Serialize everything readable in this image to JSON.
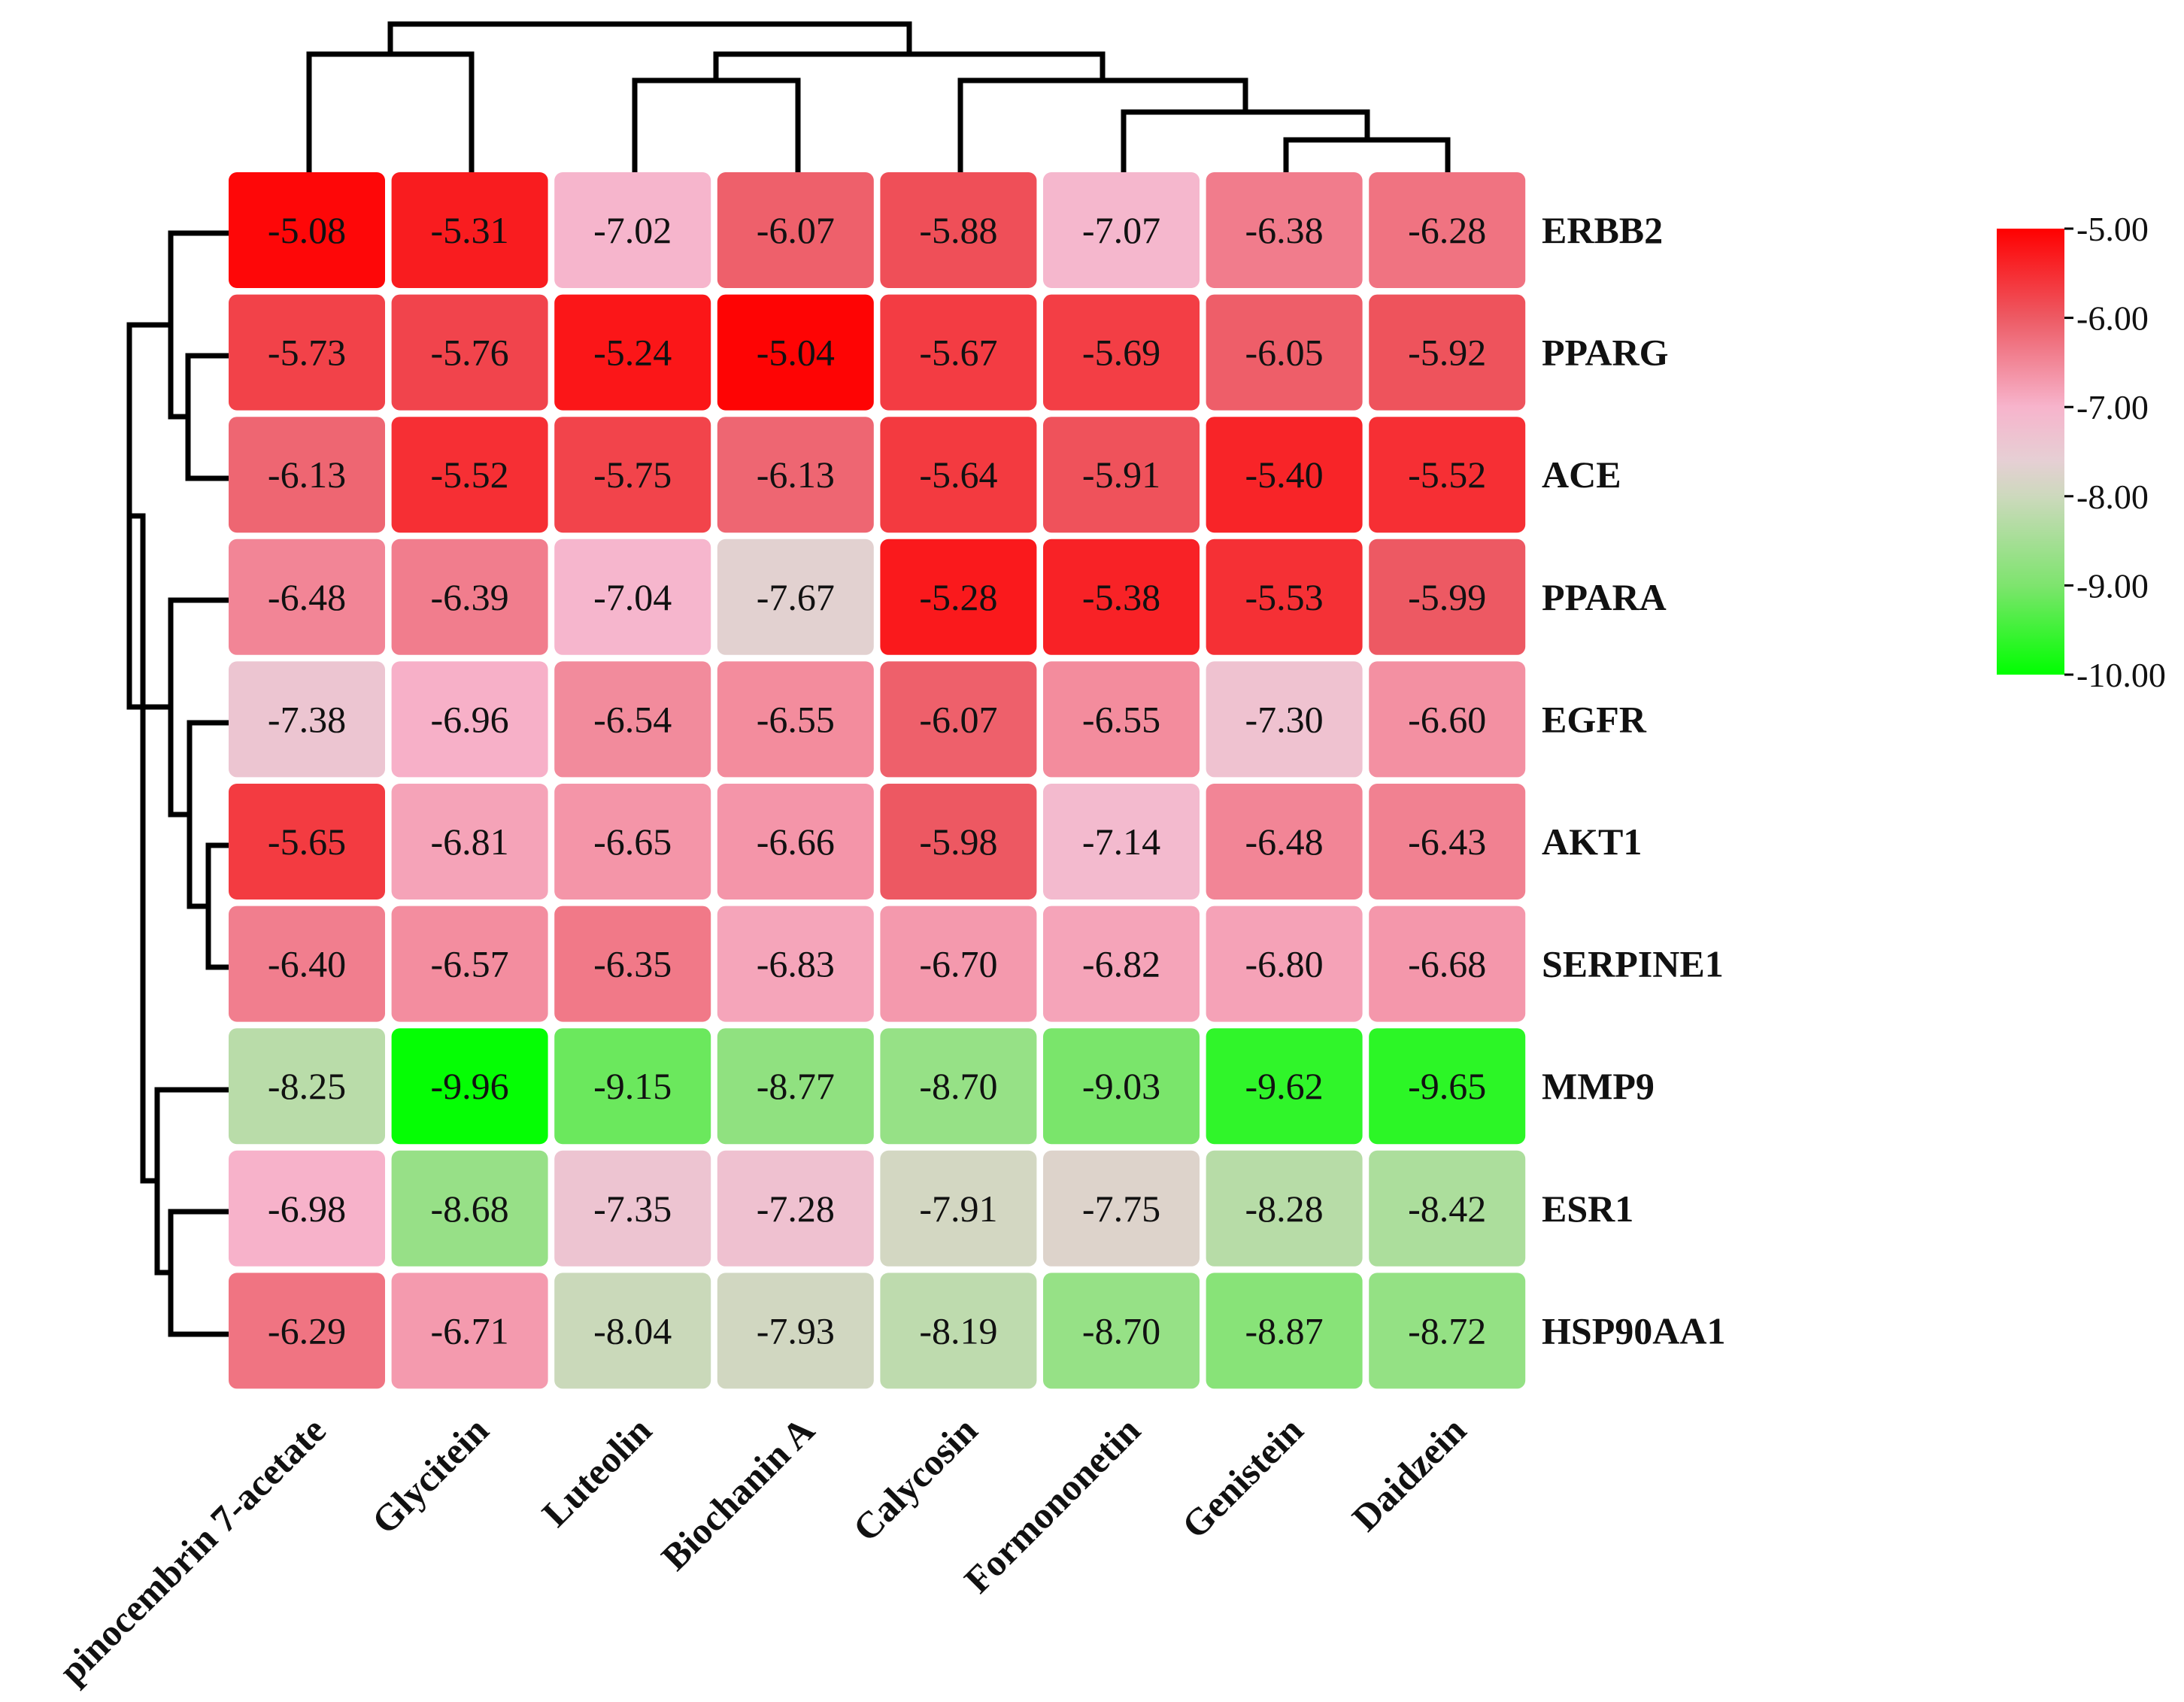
{
  "chart_data": {
    "type": "heatmap",
    "title": "",
    "rows": [
      "ERBB2",
      "PPARG",
      "ACE",
      "PPARA",
      "EGFR",
      "AKT1",
      "SERPINE1",
      "MMP9",
      "ESR1",
      "HSP90AA1"
    ],
    "columns": [
      "pinocembrin 7-acetate",
      "Glycitein",
      "Luteolin",
      "Biochanin A",
      "Calycosin",
      "Formononetin",
      "Genistein",
      "Daidzein"
    ],
    "values": [
      [
        -5.08,
        -5.31,
        -7.02,
        -6.07,
        -5.88,
        -7.07,
        -6.38,
        -6.28
      ],
      [
        -5.73,
        -5.76,
        -5.24,
        -5.04,
        -5.67,
        -5.69,
        -6.05,
        -5.92
      ],
      [
        -6.13,
        -5.52,
        -5.75,
        -6.13,
        -5.64,
        -5.91,
        -5.4,
        -5.52
      ],
      [
        -6.48,
        -6.39,
        -7.04,
        -7.67,
        -5.28,
        -5.38,
        -5.53,
        -5.99
      ],
      [
        -7.38,
        -6.96,
        -6.54,
        -6.55,
        -6.07,
        -6.55,
        -7.3,
        -6.6
      ],
      [
        -5.65,
        -6.81,
        -6.65,
        -6.66,
        -5.98,
        -7.14,
        -6.48,
        -6.43
      ],
      [
        -6.4,
        -6.57,
        -6.35,
        -6.83,
        -6.7,
        -6.82,
        -6.8,
        -6.68
      ],
      [
        -8.25,
        -9.96,
        -9.15,
        -8.77,
        -8.7,
        -9.03,
        -9.62,
        -9.65
      ],
      [
        -6.98,
        -8.68,
        -7.35,
        -7.28,
        -7.91,
        -7.75,
        -8.28,
        -8.42
      ],
      [
        -6.29,
        -6.71,
        -8.04,
        -7.93,
        -8.19,
        -8.7,
        -8.87,
        -8.72
      ]
    ],
    "value_labels": [
      [
        "-5.08",
        "-5.31",
        "-7.02",
        "-6.07",
        "-5.88",
        "-7.07",
        "-6.38",
        "-6.28"
      ],
      [
        "-5.73",
        "-5.76",
        "-5.24",
        "-5.04",
        "-5.67",
        "-5.69",
        "-6.05",
        "-5.92"
      ],
      [
        "-6.13",
        "-5.52",
        "-5.75",
        "-6.13",
        "-5.64",
        "-5.91",
        "-5.40",
        "-5.52"
      ],
      [
        "-6.48",
        "-6.39",
        "-7.04",
        "-7.67",
        "-5.28",
        "-5.38",
        "-5.53",
        "-5.99"
      ],
      [
        "-7.38",
        "-6.96",
        "-6.54",
        "-6.55",
        "-6.07",
        "-6.55",
        "-7.30",
        "-6.60"
      ],
      [
        "-5.65",
        "-6.81",
        "-6.65",
        "-6.66",
        "-5.98",
        "-7.14",
        "-6.48",
        "-6.43"
      ],
      [
        "-6.40",
        "-6.57",
        "-6.35",
        "-6.83",
        "-6.70",
        "-6.82",
        "-6.80",
        "-6.68"
      ],
      [
        "-8.25",
        "-9.96",
        "-9.15",
        "-8.77",
        "-8.70",
        "-9.03",
        "-9.62",
        "-9.65"
      ],
      [
        "-6.98",
        "-8.68",
        "-7.35",
        "-7.28",
        "-7.91",
        "-7.75",
        "-8.28",
        "-8.42"
      ],
      [
        "-6.29",
        "-6.71",
        "-8.04",
        "-7.93",
        "-8.19",
        "-8.70",
        "-8.87",
        "-8.72"
      ]
    ],
    "colorbar": {
      "min": -10.0,
      "max": -5.0,
      "ticks": [
        -5.0,
        -6.0,
        -7.0,
        -8.0,
        -9.0,
        -10.0
      ],
      "tick_labels": [
        "-5.00",
        "-6.00",
        "-7.00",
        "-8.00",
        "-9.00",
        "-10.00"
      ],
      "color_stops": [
        {
          "value": -5.0,
          "color": "#ff0000"
        },
        {
          "value": -6.0,
          "color": "#ed5a64"
        },
        {
          "value": -7.0,
          "color": "#f7b4cc"
        },
        {
          "value": -7.6,
          "color": "#e6cfd4"
        },
        {
          "value": -8.0,
          "color": "#cdd9bd"
        },
        {
          "value": -9.0,
          "color": "#7ee46e"
        },
        {
          "value": -10.0,
          "color": "#00ff00"
        }
      ],
      "placement": "right"
    },
    "row_dendrogram": "leaves ERBB2..SERPINE1 form one cluster; MMP9, ESR1, HSP90AA1 form another",
    "column_dendrogram": "pinocembrin 7-acetate + Glycitein; Luteolin + Biochanin A; Calycosin + (Formononetin + (Genistein + Daidzein))"
  }
}
